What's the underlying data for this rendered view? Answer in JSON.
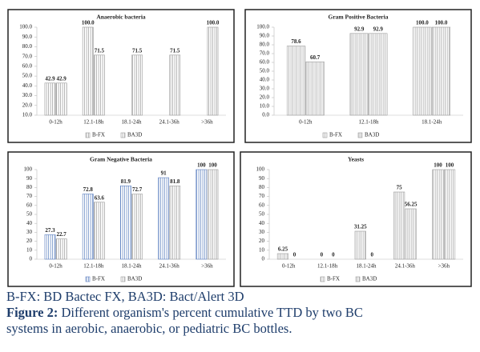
{
  "chart_data": [
    {
      "type": "bar",
      "title": "Anaerobic bacteria",
      "categories": [
        "0-12h",
        "12.1-18h",
        "18.1-24h",
        "24.1-36h",
        ">36h"
      ],
      "series": [
        {
          "name": "B-FX",
          "color": "#9a9a9a",
          "values": [
            42.9,
            100.0,
            null,
            null,
            null
          ],
          "value_labels": [
            "42.9",
            "100.0",
            null,
            null,
            null
          ]
        },
        {
          "name": "BA3D",
          "color": "#9a9a9a",
          "values": [
            42.9,
            71.5,
            71.5,
            71.5,
            100.0
          ],
          "value_labels": [
            "42.9",
            "71.5",
            "71.5",
            "71.5",
            "100.0"
          ]
        }
      ],
      "ylim": [
        10,
        100
      ],
      "yticks": [
        {
          "value": 10,
          "label": "10.0"
        },
        {
          "value": 20,
          "label": "20.0"
        },
        {
          "value": 30,
          "label": "30.0"
        },
        {
          "value": 40,
          "label": "40.0"
        },
        {
          "value": 50,
          "label": "50.0"
        },
        {
          "value": 60,
          "label": "60.0"
        },
        {
          "value": 70,
          "label": "70.0"
        },
        {
          "value": 80,
          "label": "80.0"
        },
        {
          "value": 90,
          "label": "90.0"
        },
        {
          "value": 100,
          "label": "100.0"
        }
      ],
      "legend": "bottom"
    },
    {
      "type": "bar",
      "title": "Gram Positive Bacteria",
      "categories": [
        "0-12h",
        "12.1-18h",
        "18.1-24h"
      ],
      "series": [
        {
          "name": "B-FX",
          "color": "#9a9a9a",
          "values": [
            78.6,
            92.9,
            100.0
          ],
          "value_labels": [
            "78.6",
            "92.9",
            "100.0"
          ]
        },
        {
          "name": "BA3D",
          "color": "#9a9a9a",
          "values": [
            60.7,
            92.9,
            100.0
          ],
          "value_labels": [
            "60.7",
            "92.9",
            "100.0"
          ]
        }
      ],
      "ylim": [
        0,
        100
      ],
      "yticks": [
        {
          "value": 0,
          "label": "0.0"
        },
        {
          "value": 10,
          "label": "10.0"
        },
        {
          "value": 20,
          "label": "20.0"
        },
        {
          "value": 30,
          "label": "30.0"
        },
        {
          "value": 40,
          "label": "40.0"
        },
        {
          "value": 50,
          "label": "50.0"
        },
        {
          "value": 60,
          "label": "60.0"
        },
        {
          "value": 70,
          "label": "70.0"
        },
        {
          "value": 80,
          "label": "80.0"
        },
        {
          "value": 90,
          "label": "90.0"
        },
        {
          "value": 100,
          "label": "100.0"
        }
      ],
      "legend": "bottom"
    },
    {
      "type": "bar",
      "title": "Gram Negative Bacteria",
      "categories": [
        "0-12h",
        "12.1-18h",
        "18.1-24h",
        "24.1-36h",
        ">36h"
      ],
      "series": [
        {
          "name": "B-FX",
          "color": "#5b7fc0",
          "values": [
            27.3,
            72.8,
            81.9,
            91,
            100
          ]
        },
        {
          "name": "BA3D",
          "color": "#9a9a9a",
          "values": [
            22.7,
            63.6,
            72.7,
            81.8,
            100
          ]
        }
      ],
      "ylim": [
        0,
        100
      ],
      "yticks": [
        0,
        10,
        20,
        30,
        40,
        50,
        60,
        70,
        80,
        90,
        100
      ],
      "legend": "bottom"
    },
    {
      "type": "bar",
      "title": "Yeasts",
      "categories": [
        "0-12h",
        "12.1-18h",
        "18.1-24h",
        "24.1-36h",
        ">36h"
      ],
      "series": [
        {
          "name": "B-FX",
          "color": "#9a9a9a",
          "values": [
            6.25,
            0,
            31.25,
            75,
            100
          ]
        },
        {
          "name": "BA3D",
          "color": "#9a9a9a",
          "values": [
            0,
            0,
            0,
            56.25,
            100
          ]
        }
      ],
      "ylim": [
        0,
        100
      ],
      "yticks": [
        0,
        10,
        20,
        30,
        40,
        50,
        60,
        70,
        80,
        90,
        100
      ],
      "legend": "bottom"
    }
  ],
  "caption": {
    "note": "B-FX: BD Bactec FX, BA3D: Bact/Alert 3D",
    "figure_label": "Figure 2:",
    "figure_text": "Different organism's percent cumulative TTD by two BC systems in aerobic, anaerobic, or pediatric BC bottles."
  }
}
